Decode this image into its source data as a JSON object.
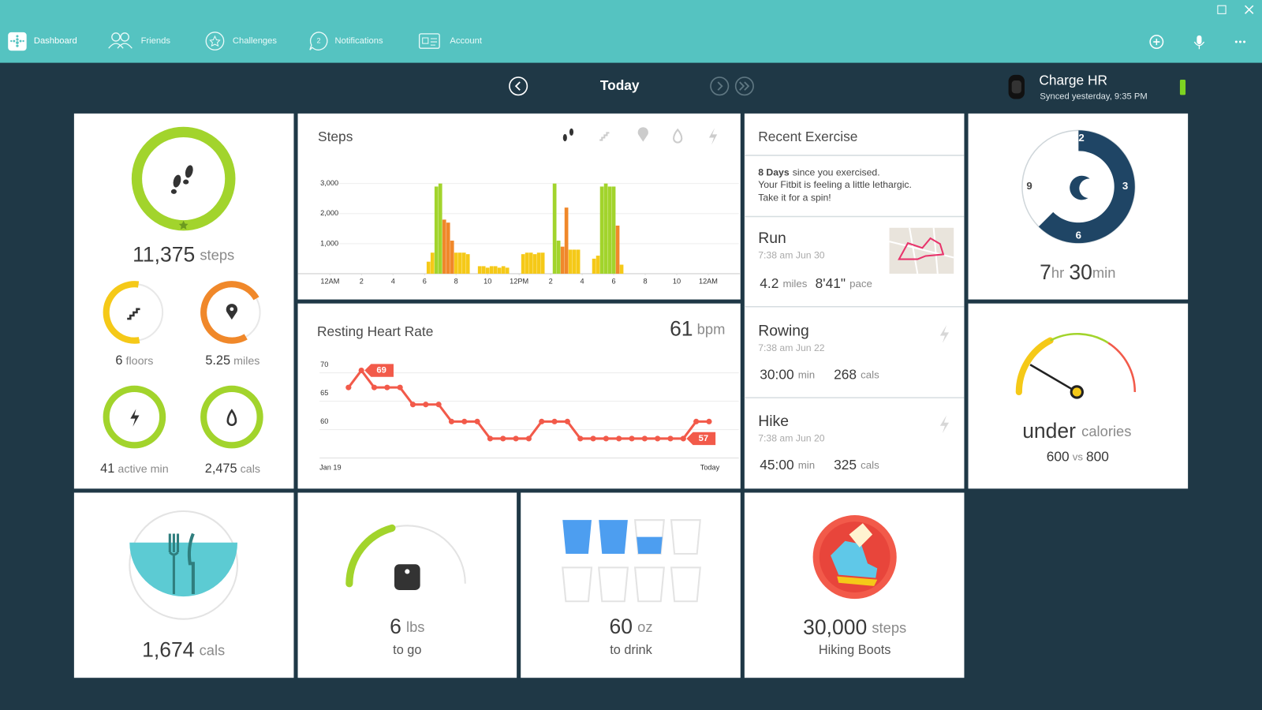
{
  "nav": {
    "items": [
      "Dashboard",
      "Friends",
      "Challenges",
      "Notifications",
      "Account"
    ],
    "notification_count": "2"
  },
  "date_nav": {
    "label": "Today"
  },
  "device": {
    "name": "Charge HR",
    "sync_status": "Synced yesterday, 9:35 PM"
  },
  "summary": {
    "steps": {
      "value": "11,375",
      "unit": "steps"
    },
    "floors": {
      "value": "6",
      "unit": "floors"
    },
    "distance": {
      "value": "5.25",
      "unit": "miles"
    },
    "active": {
      "value": "41",
      "unit": "active min"
    },
    "calories": {
      "value": "2,475",
      "unit": "cals"
    }
  },
  "chart_data": [
    {
      "type": "bar",
      "title": "Steps",
      "x": [
        6.25,
        6.5,
        6.75,
        7.0,
        7.25,
        7.5,
        7.75,
        8.0,
        8.25,
        8.5,
        8.75,
        9.5,
        9.75,
        10.0,
        10.25,
        10.5,
        10.75,
        11.0,
        11.25,
        12.25,
        12.5,
        12.75,
        13.0,
        13.25,
        13.5,
        14.25,
        14.5,
        14.75,
        15.0,
        15.25,
        15.5,
        15.75,
        16.75,
        17.0,
        17.25,
        17.5,
        17.75,
        18.0,
        18.25,
        18.5
      ],
      "values": [
        400,
        700,
        2900,
        3000,
        1800,
        1700,
        1100,
        700,
        700,
        700,
        650,
        250,
        250,
        200,
        250,
        250,
        200,
        250,
        200,
        650,
        700,
        700,
        650,
        700,
        700,
        3000,
        1100,
        900,
        2200,
        800,
        800,
        800,
        500,
        600,
        2900,
        3000,
        2900,
        2900,
        1600,
        300
      ],
      "colors": [
        "#f5c918",
        "#f5c918",
        "#a2d42c",
        "#a2d42c",
        "#f0882a",
        "#f0882a",
        "#f0882a",
        "#f5c918",
        "#f5c918",
        "#f5c918",
        "#f5c918",
        "#f5c918",
        "#f5c918",
        "#f5c918",
        "#f5c918",
        "#f5c918",
        "#f5c918",
        "#f5c918",
        "#f5c918",
        "#f5c918",
        "#f5c918",
        "#f5c918",
        "#f5c918",
        "#f5c918",
        "#f5c918",
        "#a2d42c",
        "#a2d42c",
        "#f0882a",
        "#f0882a",
        "#f5c918",
        "#f5c918",
        "#f5c918",
        "#f5c918",
        "#f5c918",
        "#a2d42c",
        "#a2d42c",
        "#a2d42c",
        "#a2d42c",
        "#f0882a",
        "#f5c918"
      ],
      "xlim": [
        0,
        24
      ],
      "xticks": [
        {
          "value": 0,
          "label": "12AM"
        },
        2,
        4,
        6,
        8,
        10,
        {
          "value": 12,
          "label": "12PM"
        },
        {
          "value": 14,
          "label": "2"
        },
        {
          "value": 16,
          "label": "4"
        },
        {
          "value": 18,
          "label": "6"
        },
        {
          "value": 20,
          "label": "8"
        },
        {
          "value": 22,
          "label": "10"
        },
        {
          "value": 24,
          "label": "12AM"
        }
      ],
      "ylim": [
        0,
        3000
      ],
      "yticks": [
        {
          "value": 1000,
          "label": "1,000"
        },
        {
          "value": 2000,
          "label": "2,000"
        },
        {
          "value": 3000,
          "label": "3,000"
        }
      ],
      "grid": true
    },
    {
      "type": "line",
      "title": "Resting Heart Rate",
      "current": "61",
      "current_unit": "bpm",
      "categories": [
        "Jan 19",
        null,
        null,
        null,
        null,
        null,
        null,
        null,
        null,
        null,
        null,
        null,
        null,
        null,
        null,
        null,
        null,
        null,
        null,
        null,
        null,
        null,
        null,
        null,
        null,
        null,
        null,
        null,
        "Today"
      ],
      "values": [
        66,
        69,
        66,
        66,
        66,
        63,
        63,
        63,
        60,
        60,
        60,
        57,
        57,
        57,
        57,
        60,
        60,
        60,
        57,
        57,
        57,
        57,
        57,
        57,
        57,
        57,
        57,
        60,
        60
      ],
      "color": "#f25a4a",
      "ylim": [
        54,
        72
      ],
      "yticks": [
        60,
        65,
        70
      ],
      "annotations": [
        "69",
        "57"
      ],
      "grid": true
    }
  ],
  "recent_exercise": {
    "title": "Recent Exercise",
    "inactive_days": "8 Days",
    "inactive_text": "since you exercised.",
    "message": [
      "Your Fitbit is feeling a little lethargic.",
      "Take it for a spin!"
    ],
    "activities": [
      {
        "name": "Run",
        "time": "7:38 am Jun 30",
        "stats": [
          {
            "value": "4.2",
            "unit": "miles"
          },
          {
            "value": "8'41\"",
            "unit": "pace"
          }
        ]
      },
      {
        "name": "Rowing",
        "time": "7:38 am Jun 22",
        "stats": [
          {
            "value": "30:00",
            "unit": "min"
          },
          {
            "value": "268",
            "unit": "cals"
          }
        ]
      },
      {
        "name": "Hike",
        "time": "7:38 am Jun 20",
        "stats": [
          {
            "value": "45:00",
            "unit": "min"
          },
          {
            "value": "325",
            "unit": "cals"
          }
        ]
      }
    ]
  },
  "sleep": {
    "clock_labels": [
      "12",
      "3",
      "6",
      "9"
    ],
    "hours": "7",
    "hours_unit": "hr",
    "minutes": "30",
    "minutes_unit": "min"
  },
  "calorie_balance": {
    "status": "under",
    "status_unit": "calories",
    "eaten": "600",
    "separator": "vs",
    "burned": "800"
  },
  "food": {
    "value": "1,674",
    "unit": "cals"
  },
  "weight": {
    "value": "6",
    "unit": "lbs",
    "caption": "to go"
  },
  "water": {
    "value": "60",
    "unit": "oz",
    "caption": "to drink"
  },
  "badge": {
    "value": "30,000",
    "unit": "steps",
    "name": "Hiking Boots"
  }
}
